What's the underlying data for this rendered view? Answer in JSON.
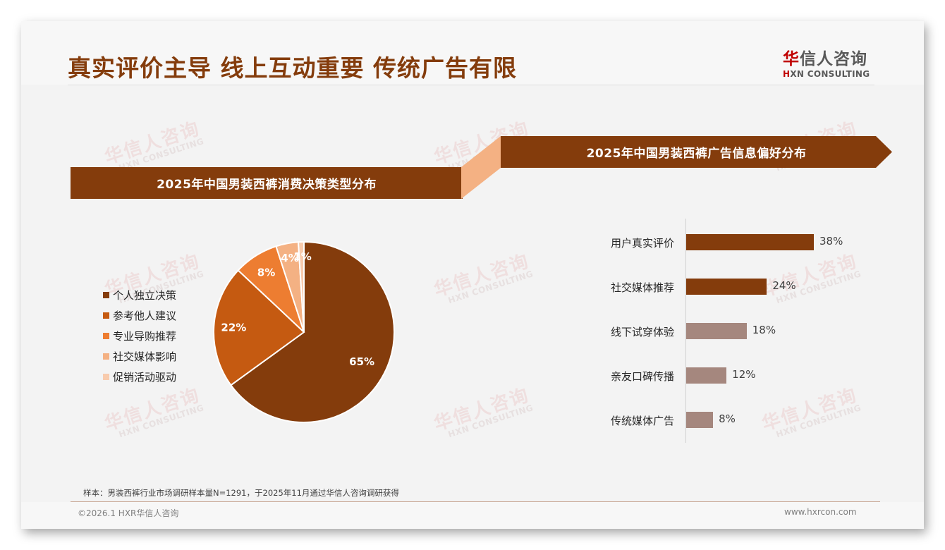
{
  "header": {
    "title": "真实评价主导 线上互动重要 传统广告有限",
    "logo_cn_mark": "华",
    "logo_cn_rest": "信人咨询",
    "logo_en_mark": "H",
    "logo_en_rest": "XN CONSULTING"
  },
  "watermark": {
    "cn": "华信人咨询",
    "en": "HXN CONSULTING"
  },
  "banners": {
    "left": "2025年中国男装西裤消费决策类型分布",
    "right": "2025年中国男装西裤广告信息偏好分布"
  },
  "colors": {
    "brand": "#843c0c",
    "connector": "#f4b183",
    "bar_dark": "#843c0c",
    "bar_light": "#a5877e"
  },
  "chart_data": [
    {
      "type": "pie",
      "title": "2025年中国男装西裤消费决策类型分布",
      "categories": [
        "个人独立决策",
        "参考他人建议",
        "专业导购推荐",
        "社交媒体影响",
        "促销活动驱动"
      ],
      "values": [
        65,
        22,
        8,
        4,
        1
      ],
      "labels": [
        "65%",
        "22%",
        "8%",
        "4%",
        "1%"
      ],
      "colors": [
        "#843c0c",
        "#c55a11",
        "#ed7d31",
        "#f4b183",
        "#f8cbad"
      ],
      "legend_position": "left",
      "start_angle": "12 o'clock, clockwise"
    },
    {
      "type": "bar",
      "orientation": "horizontal",
      "title": "2025年中国男装西裤广告信息偏好分布",
      "categories": [
        "用户真实评价",
        "社交媒体推荐",
        "线下试穿体验",
        "亲友口碑传播",
        "传统媒体广告"
      ],
      "values": [
        38,
        24,
        18,
        12,
        8
      ],
      "labels": [
        "38%",
        "24%",
        "18%",
        "12%",
        "8%"
      ],
      "colors": [
        "#843c0c",
        "#843c0c",
        "#a5877e",
        "#a5877e",
        "#a5877e"
      ],
      "xlabel": "",
      "ylabel": "",
      "grid": false
    }
  ],
  "footer": {
    "note": "样本：男装西裤行业市场调研样本量N=1291，于2025年11月通过华信人咨询调研获得",
    "copyright": "©2026.1 HXR华信人咨询",
    "site": "www.hxrcon.com"
  }
}
